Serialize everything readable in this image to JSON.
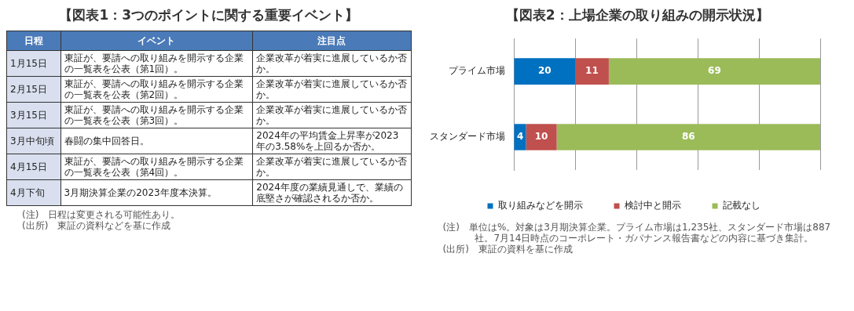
{
  "chart_data": [
    {
      "type": "other",
      "title": "【図表1：3つのポイントに関する重要イベント】",
      "categories": [
        "日程",
        "イベント",
        "注目点"
      ],
      "y_categories": [
        "1月15日",
        "2月15日",
        "3月15日",
        "3月中旬頃",
        "4月15日",
        "4月下旬"
      ],
      "annotations": [
        "東証が、要請への取り組みを開示する企業の一覧表を公表（第1回）。",
        "企業改革が着実に進展しているか否か。",
        "東証が、要請への取り組みを開示する企業の一覧表を公表（第2回）。",
        "企業改革が着実に進展しているか否か。",
        "東証が、要請への取り組みを開示する企業の一覧表を公表（第3回）。",
        "企業改革が着実に進展しているか否か。",
        "春闘の集中回答日。",
        "2024年の平均賃金上昇率が2023年の3.58%を上回るか否か。",
        "東証が、要請への取り組みを開示する企業の一覧表を公表（第4回）。",
        "企業改革が着実に進展しているか否か。",
        "3月期決算企業の2023年度本決算。",
        "2024年度の業績見通しで、業績の底堅さが確認されるか否か。",
        "(注)　日程は変更される可能性あり。",
        "(出所)　東証の資料などを基に作成"
      ]
    },
    {
      "type": "bar",
      "orientation": "horizontal",
      "stacked": true,
      "title": "【図表2：上場企業の取り組みの開示状況】",
      "categories": [
        "プライム市場",
        "スタンダード市場"
      ],
      "series": [
        {
          "name": "取り組みなどを開示",
          "color": "#0070c0",
          "values": [
            20,
            4
          ]
        },
        {
          "name": "検討中と開示",
          "color": "#c0504d",
          "values": [
            11,
            10
          ]
        },
        {
          "name": "記載なし",
          "color": "#9bbb59",
          "values": [
            69,
            86
          ]
        }
      ],
      "xlim": [
        0,
        100
      ],
      "tick_labels": "y",
      "grid": "x",
      "legend": "bottom",
      "data_labels": true,
      "annotations": [
        "(注)　単位は%。対象は3月期決算企業。プライム市場は1,235社、スタンダード市場は887社。7月14日時点のコーポレート・ガバナンス報告書などの内容に基づき集計。",
        "(出所)　東証の資料を基に作成"
      ]
    }
  ]
}
